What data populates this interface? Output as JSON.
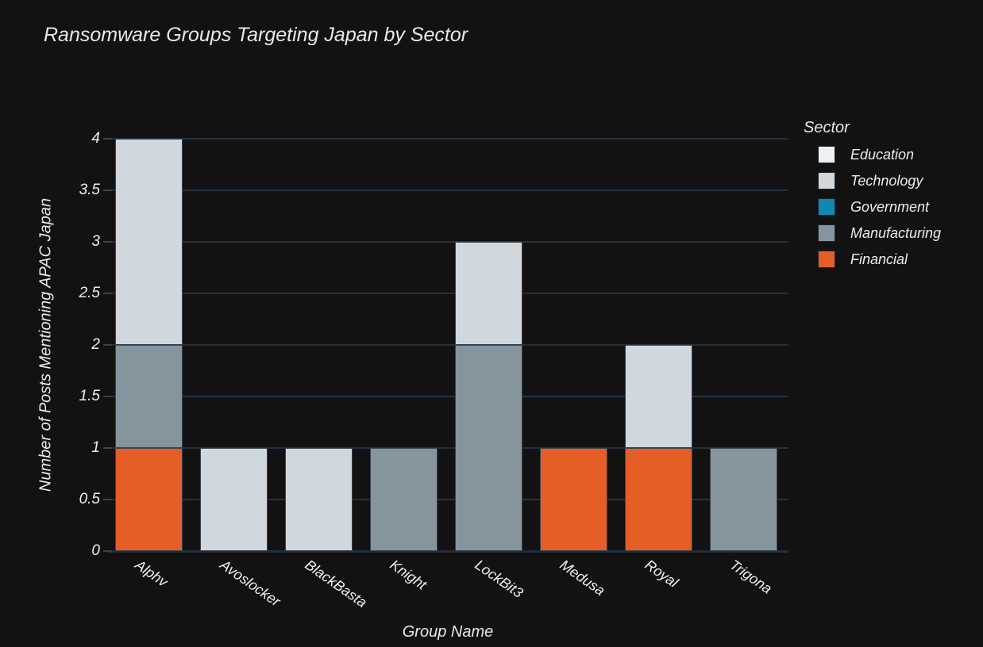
{
  "title": "Ransomware Groups Targeting Japan by Sector",
  "chart_data": {
    "type": "bar",
    "stacked": true,
    "title": "Ransomware Groups Targeting Japan by Sector",
    "xlabel": "Group Name",
    "ylabel": "Number of Posts Mentioning APAC Japan",
    "categories": [
      "Alphv",
      "Avoslocker",
      "BlackBasta",
      "Knight",
      "LockBit3",
      "Medusa",
      "Royal",
      "Trigona"
    ],
    "series": [
      {
        "name": "Education",
        "color": "#eef1f2",
        "values": [
          0,
          0,
          0,
          0,
          0,
          0,
          0,
          0
        ]
      },
      {
        "name": "Technology",
        "color": "#d0d7dd",
        "values": [
          2,
          1,
          1,
          0,
          1,
          0,
          1,
          0
        ]
      },
      {
        "name": "Government",
        "color": "#1188b4",
        "values": [
          0,
          0,
          0,
          0,
          0,
          0,
          0,
          0
        ]
      },
      {
        "name": "Manufacturing",
        "color": "#86949e",
        "values": [
          1,
          0,
          0,
          1,
          2,
          0,
          0,
          1
        ]
      },
      {
        "name": "Financial",
        "color": "#e55d27",
        "values": [
          1,
          0,
          0,
          0,
          0,
          1,
          1,
          0
        ]
      }
    ],
    "totals": {
      "Alphv": 4,
      "Avoslocker": 1,
      "BlackBasta": 1,
      "Knight": 1,
      "LockBit3": 3,
      "Medusa": 1,
      "Royal": 2,
      "Trigona": 1
    },
    "ylim": [
      0,
      4
    ],
    "yticks": [
      0,
      0.5,
      1,
      1.5,
      2,
      2.5,
      3,
      3.5,
      4
    ],
    "grid": true,
    "legend": {
      "title": "Sector",
      "position": "right",
      "entries": [
        "Education",
        "Technology",
        "Government",
        "Manufacturing",
        "Financial"
      ]
    }
  },
  "colors": {
    "background": "#121212",
    "grid": "#242f3c",
    "axis_line": "#222d39",
    "tick": "#39434f",
    "text": "#e9ecef",
    "bar_border": "#38434e"
  }
}
